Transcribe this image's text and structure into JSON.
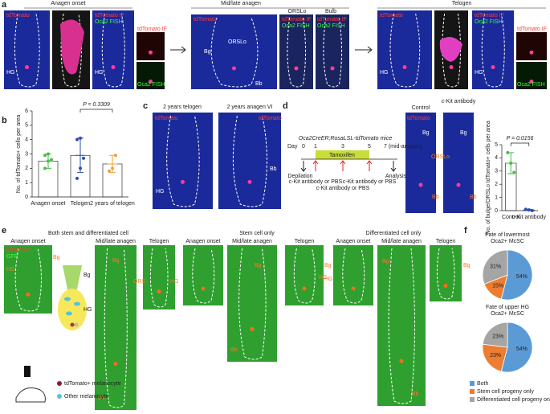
{
  "panel_labels": [
    "a",
    "b",
    "c",
    "d",
    "e",
    "f"
  ],
  "a": {
    "anagen_onset": "Anagen onset",
    "mid_late": "Mid/late anagen",
    "telogen": "Telogen",
    "ors_header": "ORSLo",
    "bulb": "Bulb",
    "tdtomato": "tdTomato",
    "tdtomato_if": "tdTomato IF",
    "oca2_fish": "Oca2 FISH",
    "hg": "HG",
    "bg": "Bg",
    "bb": "Bb",
    "ors": "ORSLo"
  },
  "c": {
    "left": "2 years telogen",
    "right": "2 years anagen VI",
    "tdtomato": "tdTomato",
    "hg": "HG",
    "bb": "Bb"
  },
  "d": {
    "title": "Oca2CreER;RosaLSL-tdTomato mice",
    "day": "Day",
    "days": [
      "0",
      "1",
      "3",
      "5",
      "7 (mid-anagen)"
    ],
    "tamoxifen": "Tamoxifen",
    "depilation": "Depilation",
    "ckit_pbs": "c-Kit antibody or PBS",
    "analysis": "Analysis",
    "control": "Control",
    "ckit": "c-Kit antibody",
    "tdtomato": "tdTomato",
    "bg": "Bg",
    "bb": "Bb",
    "ors": "ORSLo"
  },
  "e": {
    "groups": [
      "Both stem and differentiated cell",
      "Stem cell only",
      "Differentiated cell only"
    ],
    "stages": [
      "Anagen onset",
      "Mid/late anagen",
      "Telogen"
    ],
    "tdtomato": "tdTomato",
    "gfp": "GFP",
    "bg": "Bg",
    "hg": "HG",
    "bb": "Bb",
    "ors": "ORS",
    "legend": [
      "tdTomato+ melanocyte",
      "Other melanocyte"
    ]
  },
  "chart_data": [
    {
      "type": "bar",
      "ylabel": "No. of tdTomato+ cells per area",
      "categories": [
        "Anagen onset",
        "Telogen",
        "2 years of telogen"
      ],
      "values": [
        2.5,
        2.9,
        2.3
      ],
      "errors": [
        0.5,
        1.2,
        0.6
      ],
      "points": [
        [
          2.0,
          2.5,
          2.6,
          2.9,
          3.0
        ],
        [
          1.3,
          2.0,
          2.7,
          4.0,
          4.1
        ],
        [
          1.8,
          2.0,
          2.9
        ]
      ],
      "colors": [
        "#4cbb4c",
        "#2e4fb0",
        "#f0a040"
      ],
      "ylim": [
        0,
        6
      ],
      "yticks": [
        0,
        1,
        2,
        3,
        4,
        5,
        6
      ],
      "annotation": "P = 0.3309"
    },
    {
      "type": "bar",
      "ylabel": "No. of bulge/ORSLo tdTomato+ cells per area",
      "categories": [
        "Control",
        "c-Kit antibody"
      ],
      "values": [
        3.6,
        0.05
      ],
      "errors": [
        0.8,
        0.05
      ],
      "points": [
        [
          4.4,
          3.6,
          2.9
        ],
        [
          0.1,
          0.05,
          0
        ]
      ],
      "colors": [
        "#4cbb4c",
        "#2e4fb0"
      ],
      "ylim": [
        0,
        5
      ],
      "yticks": [
        0,
        1,
        2,
        3,
        4,
        5
      ],
      "annotation": "P = 0.0156"
    },
    {
      "type": "pie",
      "title": [
        "Fate of lowermost",
        "Oca2+ McSC"
      ],
      "categories": [
        "Both",
        "Stem cell progeny only",
        "Differentiated cell progeny only"
      ],
      "values": [
        54,
        15,
        31
      ],
      "value_labels": [
        "54%",
        "15%",
        "31%"
      ],
      "colors": [
        "#5b9bd5",
        "#ed7d31",
        "#a5a5a5"
      ]
    },
    {
      "type": "pie",
      "title": [
        "Fate of upper HG",
        "Oca2+ McSC"
      ],
      "values": [
        54,
        23,
        23
      ],
      "value_labels": [
        "54%",
        "23%",
        "23%"
      ],
      "colors": [
        "#5b9bd5",
        "#ed7d31",
        "#a5a5a5"
      ]
    }
  ]
}
